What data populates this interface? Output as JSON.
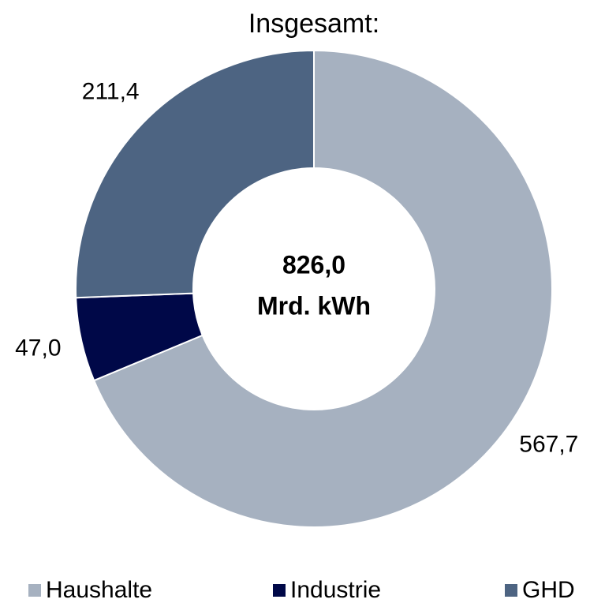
{
  "chart_data": {
    "type": "donut",
    "title": "Insgesamt:",
    "categories": [
      "Haushalte",
      "Industrie",
      "GHD"
    ],
    "values": [
      567.7,
      47.0,
      211.4
    ],
    "value_labels": [
      "567,7",
      "47,0",
      "211,4"
    ],
    "colors": [
      "#a6b1c0",
      "#000848",
      "#4d6482"
    ],
    "center_label": [
      "826,0",
      "Mrd. kWh"
    ],
    "legend": "bottom"
  }
}
